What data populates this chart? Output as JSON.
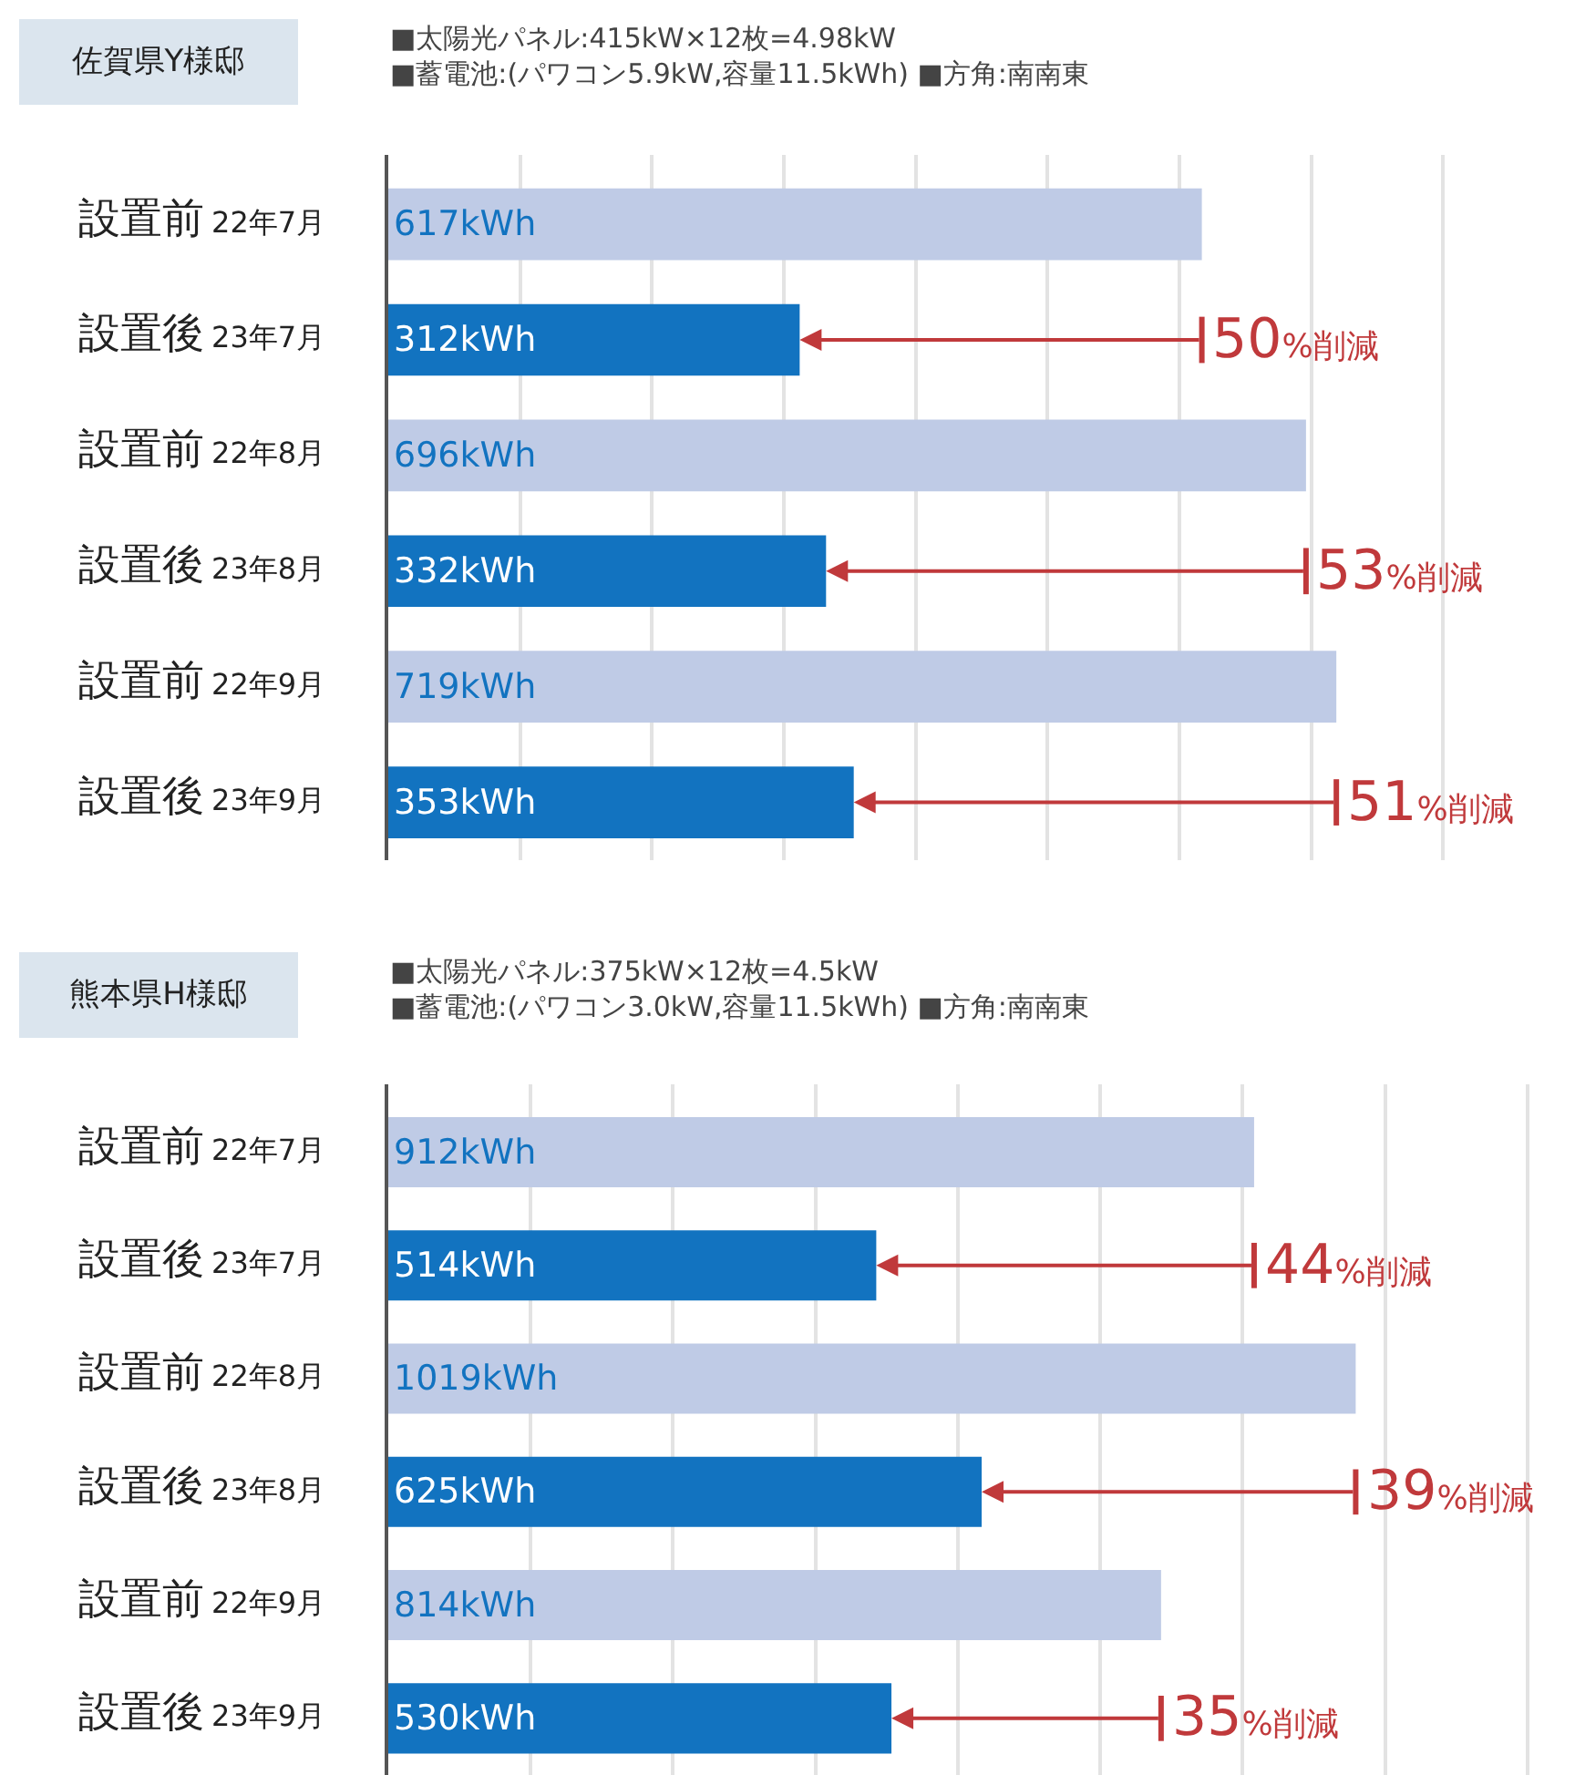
{
  "chart_data": [
    {
      "type": "bar",
      "orientation": "horizontal",
      "title": "佐賀県Y様邸",
      "subtitle": "■太陽光パネル:415kW×12枚=4.98kW\n■蓄電池:(パワコン5.9kW,容量11.5kWh) ■方角:南南東",
      "categories": [
        "設置前 22年7月",
        "設置後 23年7月",
        "設置前 22年8月",
        "設置後 23年8月",
        "設置前 22年9月",
        "設置後 23年9月"
      ],
      "values": [
        617,
        312,
        696,
        332,
        719,
        353
      ],
      "colors": [
        "#bfcbe6",
        "#1273c0",
        "#bfcbe6",
        "#1273c0",
        "#bfcbe6",
        "#1273c0"
      ],
      "value_labels": [
        "617kWh",
        "312kWh",
        "696kWh",
        "332kWh",
        "719kWh",
        "353kWh"
      ],
      "xlim": [
        0,
        900
      ],
      "xticks": [
        {
          "value": 0,
          "label": null
        },
        {
          "value": 100,
          "label": null
        },
        {
          "value": 200,
          "label": null
        },
        {
          "value": 300,
          "label": null
        },
        {
          "value": 400,
          "label": null
        },
        {
          "value": 500,
          "label": null
        },
        {
          "value": 600,
          "label": null
        },
        {
          "value": 700,
          "label": null
        },
        {
          "value": 800,
          "label": null
        },
        {
          "value": 900,
          "label": null
        }
      ],
      "grid": "x",
      "tick_labels": "y",
      "annotations": [
        "50%削減",
        "53%削減",
        "51%削減"
      ]
    },
    {
      "type": "bar",
      "orientation": "horizontal",
      "title": "熊本県H様邸",
      "subtitle": "■太陽光パネル:375kW×12枚=4.5kW\n■蓄電池:(パワコン3.0kW,容量11.5kWh) ■方角:南南東",
      "categories": [
        "設置前 22年7月",
        "設置後 23年7月",
        "設置前 22年8月",
        "設置後 23年8月",
        "設置前 22年9月",
        "設置後 23年9月"
      ],
      "values": [
        912,
        514,
        1019,
        625,
        814,
        530
      ],
      "colors": [
        "#bfcbe6",
        "#1273c0",
        "#bfcbe6",
        "#1273c0",
        "#bfcbe6",
        "#1273c0"
      ],
      "value_labels": [
        "912kWh",
        "514kWh",
        "1019kWh",
        "625kWh",
        "814kWh",
        "530kWh"
      ],
      "xlim": [
        0,
        1250
      ],
      "xticks": [
        {
          "value": 0,
          "label": null
        },
        {
          "value": 150,
          "label": null
        },
        {
          "value": 300,
          "label": null
        },
        {
          "value": 450,
          "label": null
        },
        {
          "value": 600,
          "label": null
        },
        {
          "value": 750,
          "label": null
        },
        {
          "value": 900,
          "label": null
        },
        {
          "value": 1050,
          "label": null
        },
        {
          "value": 1200,
          "label": null
        }
      ],
      "grid": "x",
      "tick_labels": "y",
      "annotations": [
        "44%削減",
        "39%削減",
        "35%削減"
      ]
    }
  ]
}
